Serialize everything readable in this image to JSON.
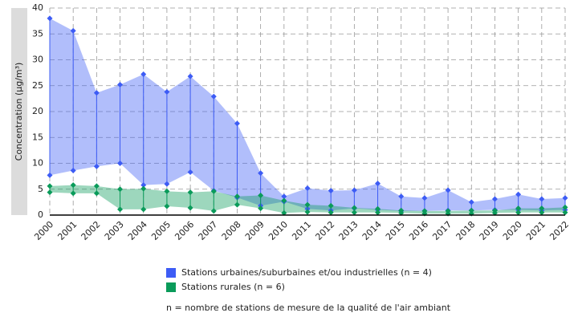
{
  "chart_data": {
    "type": "range-band",
    "y_label": "Concentration (µg/m³)",
    "categories": [
      "2000",
      "2001",
      "2002",
      "2003",
      "2004",
      "2005",
      "2006",
      "2007",
      "2008",
      "2009",
      "2010",
      "2011",
      "2012",
      "2013",
      "2014",
      "2015",
      "2016",
      "2017",
      "2018",
      "2019",
      "2020",
      "2021",
      "2022"
    ],
    "series": [
      {
        "name": "Stations urbaines/suburbaines et/ou industrielles (n = 4)",
        "color": "#3d5cf5",
        "high": [
          38,
          35.6,
          23.6,
          25.2,
          27.2,
          23.8,
          26.8,
          22.9,
          17.7,
          8.1,
          3.6,
          5.2,
          4.7,
          4.8,
          6.1,
          3.6,
          3.3,
          4.8,
          2.5,
          3.1,
          4.0,
          3.1,
          3.3
        ],
        "low": [
          7.7,
          8.6,
          9.4,
          10,
          5.8,
          6,
          8.3,
          4.7,
          3.4,
          1.8,
          2.6,
          1.2,
          0.9,
          1.3,
          1.0,
          0.8,
          0.8,
          0.9,
          0.9,
          1.0,
          1.0,
          0.9,
          1.0
        ]
      },
      {
        "name": "Stations rurales (n = 6)",
        "color": "#0a9b5a",
        "high": [
          5.6,
          5.8,
          5.6,
          5.0,
          5.1,
          4.6,
          4.4,
          4.6,
          3.6,
          3.8,
          2.8,
          2.0,
          1.8,
          1.4,
          1.2,
          0.9,
          0.8,
          0.8,
          0.9,
          0.9,
          1.3,
          1.3,
          1.5
        ],
        "low": [
          4.4,
          4.2,
          4.2,
          1.1,
          1.1,
          1.7,
          1.4,
          0.8,
          2.0,
          1.3,
          0.4,
          0.6,
          0.5,
          0.5,
          0.5,
          0.4,
          0.3,
          0.3,
          0.3,
          0.4,
          0.5,
          0.5,
          0.5
        ]
      }
    ],
    "ylim": [
      0,
      40
    ],
    "yticks": [
      0,
      5,
      10,
      15,
      20,
      25,
      30,
      35,
      40
    ],
    "grid": true,
    "note": "n = nombre de stations de mesure de la qualité de l'air ambiant"
  }
}
